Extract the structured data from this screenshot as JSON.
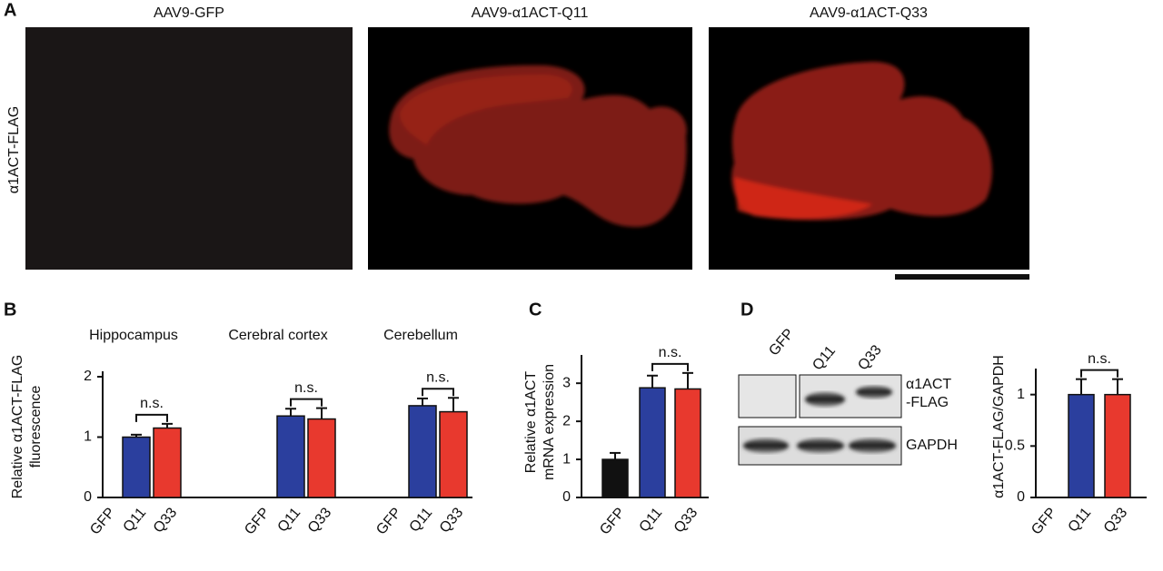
{
  "panel_a": {
    "label": "A",
    "titles": [
      "AAV9-GFP",
      "AAV9-α1ACT-Q11",
      "AAV9-α1ACT-Q33"
    ],
    "row_label": "α1ACT-FLAG"
  },
  "panel_d_blot": {
    "lanes": [
      "GFP",
      "Q11",
      "Q33"
    ],
    "band_labels": [
      [
        "α1ACT",
        "-FLAG"
      ],
      "GAPDH"
    ]
  },
  "chart_data": [
    {
      "type": "bar",
      "panel_label": "B",
      "title": "Hippocampus",
      "ylabel": [
        "Relative α1ACT-FLAG",
        "fluorescence"
      ],
      "categories": [
        "GFP",
        "Q11",
        "Q33"
      ],
      "values": [
        0,
        1.0,
        1.15
      ],
      "errors": [
        0,
        0.04,
        0.07
      ],
      "colors": [
        "#111111",
        "#2b3f9e",
        "#e8392e"
      ],
      "ylim": [
        0,
        2
      ],
      "yticks": [
        0,
        1,
        2
      ],
      "annotation": "n.s."
    },
    {
      "type": "bar",
      "title": "Cerebral cortex",
      "categories": [
        "GFP",
        "Q11",
        "Q33"
      ],
      "values": [
        0,
        1.35,
        1.3
      ],
      "errors": [
        0,
        0.12,
        0.18
      ],
      "colors": [
        "#111111",
        "#2b3f9e",
        "#e8392e"
      ],
      "ylim": [
        0,
        2
      ],
      "annotation": "n.s."
    },
    {
      "type": "bar",
      "title": "Cerebellum",
      "categories": [
        "GFP",
        "Q11",
        "Q33"
      ],
      "values": [
        0,
        1.52,
        1.42
      ],
      "errors": [
        0,
        0.12,
        0.23
      ],
      "colors": [
        "#111111",
        "#2b3f9e",
        "#e8392e"
      ],
      "ylim": [
        0,
        2
      ],
      "annotation": "n.s."
    },
    {
      "type": "bar",
      "panel_label": "C",
      "ylabel": [
        "Relative α1ACT",
        "mRNA expression"
      ],
      "categories": [
        "GFP",
        "Q11",
        "Q33"
      ],
      "values": [
        1.0,
        2.88,
        2.85
      ],
      "errors": [
        0.17,
        0.32,
        0.42
      ],
      "colors": [
        "#111111",
        "#2b3f9e",
        "#e8392e"
      ],
      "ylim": [
        0,
        3.6
      ],
      "yticks": [
        0,
        1,
        2,
        3
      ],
      "annotation": "n.s."
    },
    {
      "type": "bar",
      "panel_label": "D",
      "ylabel": [
        "α1ACT-FLAG/GAPDH"
      ],
      "categories": [
        "GFP",
        "Q11",
        "Q33"
      ],
      "values": [
        0,
        1.0,
        1.0
      ],
      "errors": [
        0,
        0.15,
        0.15
      ],
      "colors": [
        "#111111",
        "#2b3f9e",
        "#e8392e"
      ],
      "ylim": [
        0,
        1.2
      ],
      "yticks": [
        0,
        0.5,
        1
      ],
      "annotation": "n.s."
    }
  ]
}
